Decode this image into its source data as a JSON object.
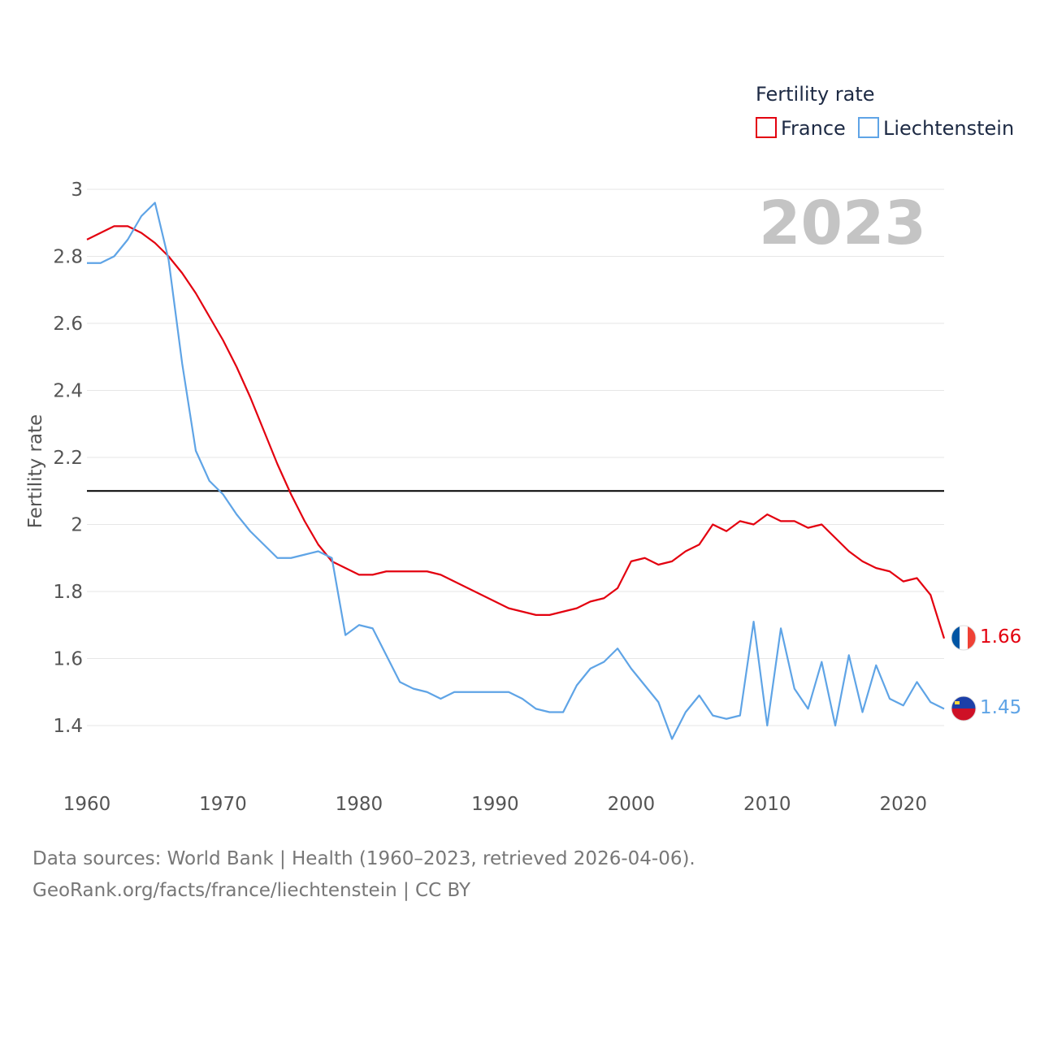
{
  "chart_data": {
    "type": "line",
    "title": "",
    "xlabel": "",
    "ylabel": "Fertility rate",
    "xlim": [
      1960,
      2023
    ],
    "ylim": [
      1.3,
      3.0
    ],
    "y_ticks": [
      3,
      2.8,
      2.6,
      2.4,
      2.2,
      2,
      1.8,
      1.6,
      1.4
    ],
    "y_tick_labels": [
      "3",
      "2.8",
      "2.6",
      "2.4",
      "2.2",
      "2",
      "1.8",
      "1.6",
      "1.4"
    ],
    "x_ticks": [
      1960,
      1970,
      1980,
      1990,
      2000,
      2010,
      2020
    ],
    "x_tick_labels": [
      "1960",
      "1970",
      "1980",
      "1990",
      "2000",
      "2010",
      "2020"
    ],
    "reference_line": 2.1,
    "year_label": "2023",
    "legend": {
      "title": "Fertility rate",
      "position": "top-right"
    },
    "x": [
      1960,
      1961,
      1962,
      1963,
      1964,
      1965,
      1966,
      1967,
      1968,
      1969,
      1970,
      1971,
      1972,
      1973,
      1974,
      1975,
      1976,
      1977,
      1978,
      1979,
      1980,
      1981,
      1982,
      1983,
      1984,
      1985,
      1986,
      1987,
      1988,
      1989,
      1990,
      1991,
      1992,
      1993,
      1994,
      1995,
      1996,
      1997,
      1998,
      1999,
      2000,
      2001,
      2002,
      2003,
      2004,
      2005,
      2006,
      2007,
      2008,
      2009,
      2010,
      2011,
      2012,
      2013,
      2014,
      2015,
      2016,
      2017,
      2018,
      2019,
      2020,
      2021,
      2022,
      2023
    ],
    "series": [
      {
        "name": "France",
        "color": "#e3000f",
        "end_label": "1.66",
        "values": [
          2.85,
          2.87,
          2.89,
          2.89,
          2.87,
          2.84,
          2.8,
          2.75,
          2.69,
          2.62,
          2.55,
          2.47,
          2.38,
          2.28,
          2.18,
          2.09,
          2.01,
          1.94,
          1.89,
          1.87,
          1.85,
          1.85,
          1.86,
          1.86,
          1.86,
          1.86,
          1.85,
          1.83,
          1.81,
          1.79,
          1.77,
          1.75,
          1.74,
          1.73,
          1.73,
          1.74,
          1.75,
          1.77,
          1.78,
          1.81,
          1.89,
          1.9,
          1.88,
          1.89,
          1.92,
          1.94,
          2.0,
          1.98,
          2.01,
          2.0,
          2.03,
          2.01,
          2.01,
          1.99,
          2.0,
          1.96,
          1.92,
          1.89,
          1.87,
          1.86,
          1.83,
          1.84,
          1.79,
          1.66
        ]
      },
      {
        "name": "Liechtenstein",
        "color": "#5fa4e6",
        "end_label": "1.45",
        "values": [
          2.78,
          2.78,
          2.8,
          2.85,
          2.92,
          2.96,
          2.79,
          2.48,
          2.22,
          2.13,
          2.09,
          2.03,
          1.98,
          1.94,
          1.9,
          1.9,
          1.91,
          1.92,
          1.9,
          1.67,
          1.7,
          1.69,
          1.61,
          1.53,
          1.51,
          1.5,
          1.48,
          1.5,
          1.5,
          1.5,
          1.5,
          1.5,
          1.48,
          1.45,
          1.44,
          1.44,
          1.52,
          1.57,
          1.59,
          1.63,
          1.57,
          1.52,
          1.47,
          1.36,
          1.44,
          1.49,
          1.43,
          1.42,
          1.43,
          1.71,
          1.4,
          1.69,
          1.51,
          1.45,
          1.59,
          1.4,
          1.61,
          1.44,
          1.58,
          1.48,
          1.46,
          1.53,
          1.47,
          1.45
        ]
      }
    ]
  },
  "footer": {
    "line1": "Data sources: World Bank | Health (1960–2023, retrieved 2026-04-06).",
    "line2": "GeoRank.org/facts/france/liechtenstein | CC BY"
  }
}
